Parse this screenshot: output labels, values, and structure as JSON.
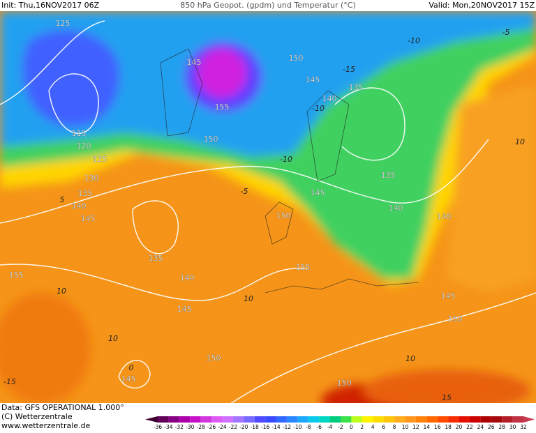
{
  "header": {
    "init": "Init: Thu,16NOV2017 06Z",
    "title": "850 hPa Geopot. (gpdm) und Temperatur (°C)",
    "valid": "Valid: Mon,20NOV2017 15Z"
  },
  "footer": {
    "data_source": "Data: GFS OPERATIONAL 1.000°",
    "copyright": "(C) Wetterzentrale",
    "url": "www.wetterzentrale.de"
  },
  "colorbar": {
    "ticks": [
      -36,
      -34,
      -32,
      -30,
      -28,
      -26,
      -24,
      -22,
      -20,
      -18,
      -16,
      -14,
      -12,
      -10,
      -8,
      -6,
      -4,
      -2,
      0,
      2,
      4,
      6,
      8,
      10,
      12,
      14,
      16,
      18,
      20,
      22,
      24,
      26,
      28,
      30,
      32
    ]
  },
  "geopotential_labels": [
    "125",
    "145",
    "150",
    "155",
    "135",
    "145",
    "140",
    "115",
    "120",
    "125",
    "150",
    "130",
    "135",
    "140",
    "145",
    "145",
    "135",
    "150",
    "140",
    "140",
    "135",
    "155",
    "155",
    "140",
    "145",
    "145",
    "150",
    "150",
    "145",
    "150"
  ],
  "temperature_labels": [
    "-5",
    "-10",
    "-15",
    "-10",
    "-10",
    "5",
    "-5",
    "10",
    "10",
    "10",
    "10",
    "15",
    "-15",
    "0",
    "10"
  ]
}
